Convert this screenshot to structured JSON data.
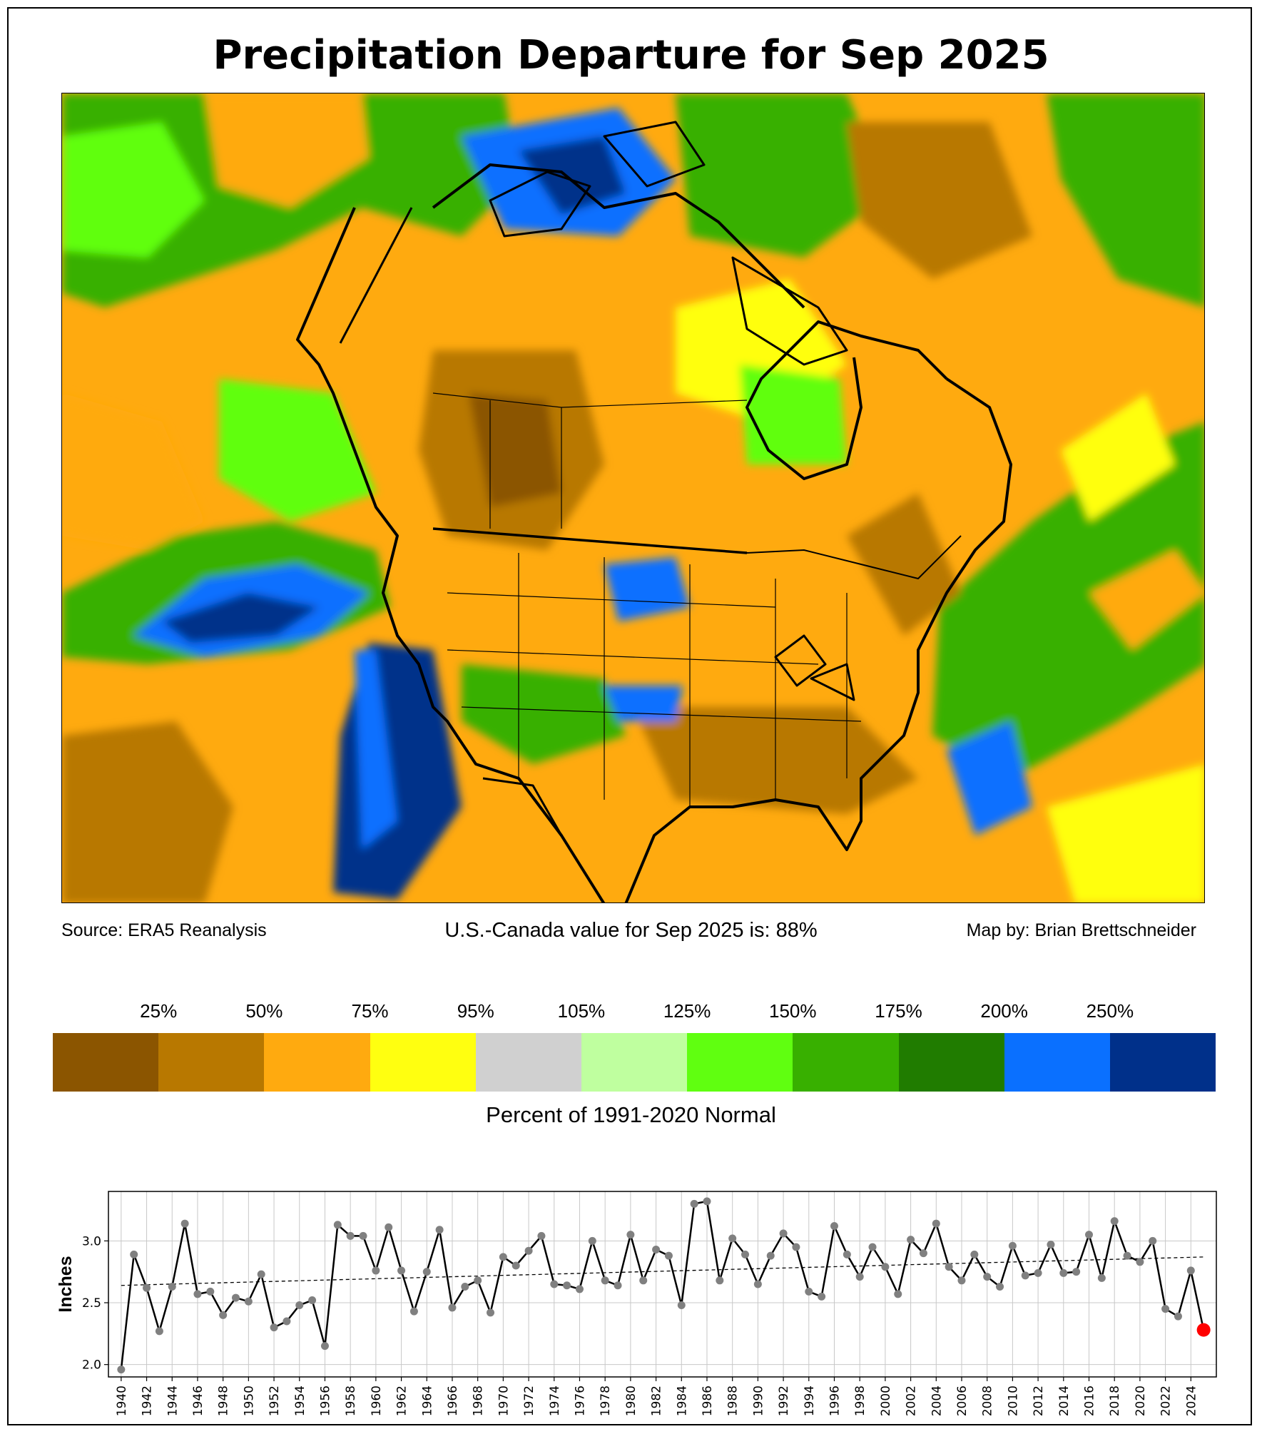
{
  "title": "Precipitation Departure for Sep 2025",
  "footer": {
    "source": "Source: ERA5 Reanalysis",
    "summary": "U.S.-Canada value for Sep 2025 is: 88%",
    "credit": "Map by: Brian Brettschneider"
  },
  "colorbar": {
    "title": "Percent of 1991-2020 Normal",
    "boundaries": [
      "25%",
      "50%",
      "75%",
      "95%",
      "105%",
      "125%",
      "150%",
      "175%",
      "200%",
      "250%"
    ],
    "colors": [
      "#8B5500",
      "#B87800",
      "#FFAA0F",
      "#FFFF10",
      "#D0D0D0",
      "#BFFF9F",
      "#60FF10",
      "#38B000",
      "#207C00",
      "#0A70FF",
      "#00308A"
    ]
  },
  "map": {
    "description_colors": {
      "land_outline": "#000000",
      "ocean_base": "#FFAA0F"
    }
  },
  "chart_data": {
    "type": "line",
    "title": "",
    "xlabel": "",
    "ylabel": "Inches",
    "x": [
      1940,
      1941,
      1942,
      1943,
      1944,
      1945,
      1946,
      1947,
      1948,
      1949,
      1950,
      1951,
      1952,
      1953,
      1954,
      1955,
      1956,
      1957,
      1958,
      1959,
      1960,
      1961,
      1962,
      1963,
      1964,
      1965,
      1966,
      1967,
      1968,
      1969,
      1970,
      1971,
      1972,
      1973,
      1974,
      1975,
      1976,
      1977,
      1978,
      1979,
      1980,
      1981,
      1982,
      1983,
      1984,
      1985,
      1986,
      1987,
      1988,
      1989,
      1990,
      1991,
      1992,
      1993,
      1994,
      1995,
      1996,
      1997,
      1998,
      1999,
      2000,
      2001,
      2002,
      2003,
      2004,
      2005,
      2006,
      2007,
      2008,
      2009,
      2010,
      2011,
      2012,
      2013,
      2014,
      2015,
      2016,
      2017,
      2018,
      2019,
      2020,
      2021,
      2022,
      2023,
      2024,
      2025
    ],
    "values": [
      1.96,
      2.89,
      2.62,
      2.27,
      2.63,
      3.14,
      2.57,
      2.59,
      2.4,
      2.54,
      2.51,
      2.73,
      2.3,
      2.35,
      2.48,
      2.52,
      2.15,
      3.13,
      3.04,
      3.04,
      2.76,
      3.11,
      2.76,
      2.43,
      2.75,
      3.09,
      2.46,
      2.63,
      2.68,
      2.42,
      2.87,
      2.8,
      2.92,
      3.04,
      2.65,
      2.64,
      2.61,
      3.0,
      2.68,
      2.64,
      3.05,
      2.68,
      2.93,
      2.88,
      2.48,
      3.3,
      3.32,
      2.68,
      3.02,
      2.89,
      2.65,
      2.88,
      3.06,
      2.95,
      2.59,
      2.55,
      3.12,
      2.89,
      2.71,
      2.95,
      2.79,
      2.57,
      3.01,
      2.9,
      3.14,
      2.79,
      2.68,
      2.89,
      2.71,
      2.63,
      2.96,
      2.72,
      2.74,
      2.97,
      2.74,
      2.75,
      3.05,
      2.7,
      3.16,
      2.88,
      2.83,
      3.0,
      2.45,
      2.39,
      2.76,
      2.28
    ],
    "trend": {
      "start": 2.64,
      "end": 2.87,
      "style": "dashed"
    },
    "highlight": {
      "year": 2025,
      "color": "#FF0000"
    },
    "xticks": [
      "1940",
      "1942",
      "1944",
      "1946",
      "1948",
      "1950",
      "1952",
      "1954",
      "1956",
      "1958",
      "1960",
      "1962",
      "1964",
      "1966",
      "1968",
      "1970",
      "1972",
      "1974",
      "1976",
      "1978",
      "1980",
      "1982",
      "1984",
      "1986",
      "1988",
      "1990",
      "1992",
      "1994",
      "1996",
      "1998",
      "2000",
      "2002",
      "2004",
      "2006",
      "2008",
      "2010",
      "2012",
      "2014",
      "2016",
      "2018",
      "2020",
      "2022",
      "2024"
    ],
    "yticks": [
      "2.0",
      "2.5",
      "3.0"
    ],
    "xlim": [
      1939,
      2026
    ],
    "ylim": [
      1.9,
      3.4
    ],
    "grid": true,
    "point_color": "#808080",
    "line_color": "#000000"
  }
}
